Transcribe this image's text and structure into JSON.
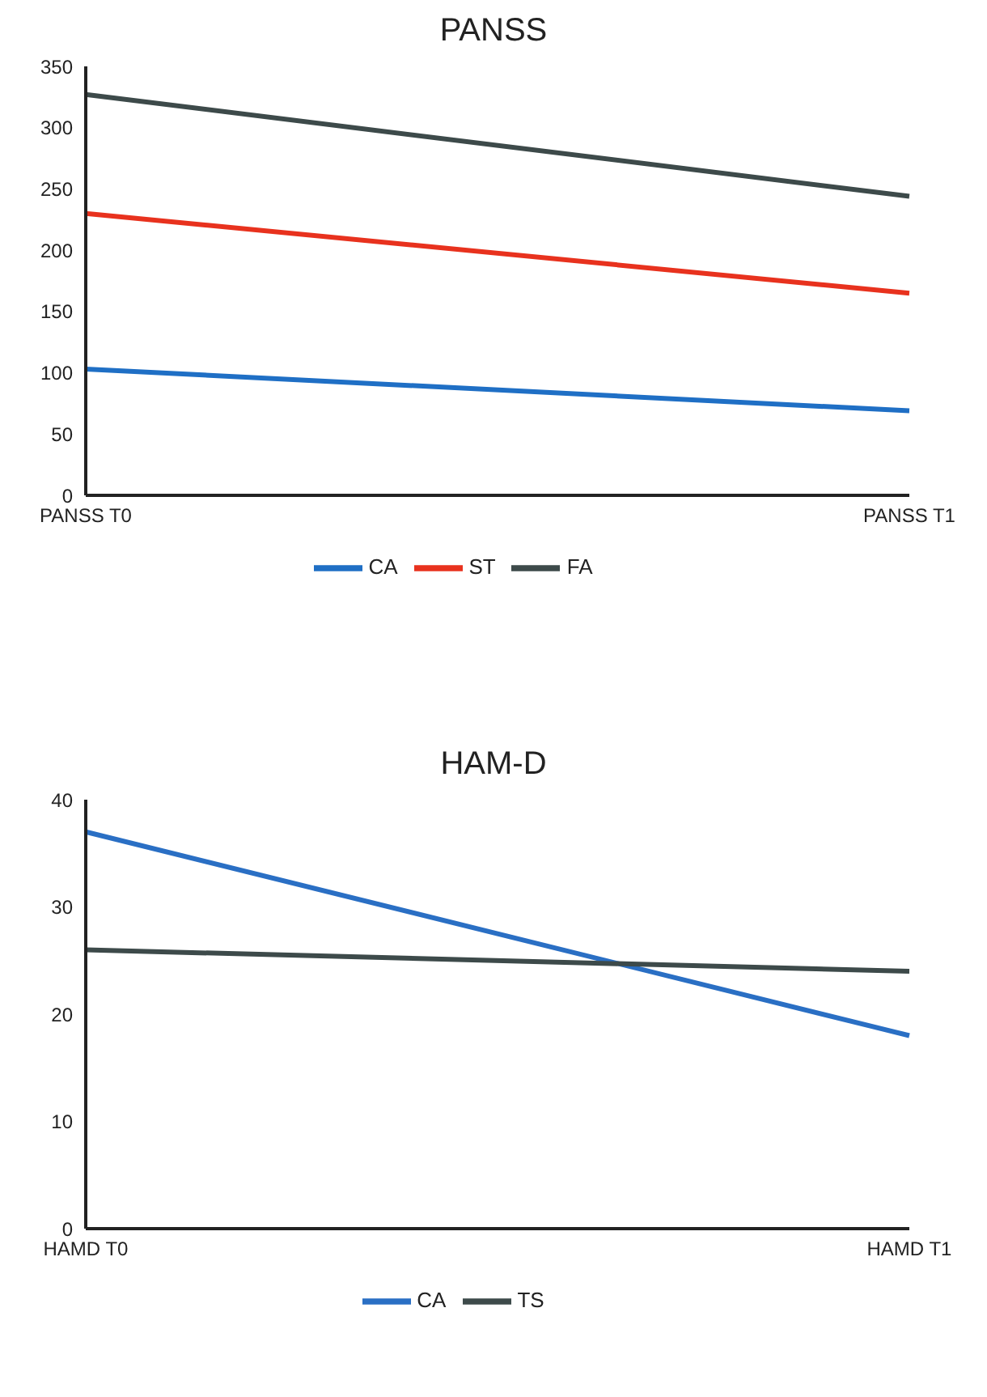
{
  "chart_data": [
    {
      "type": "line",
      "title": "PANSS",
      "categories": [
        "PANSS T0",
        "PANSS T1"
      ],
      "series": [
        {
          "name": "CA",
          "color": "#1f6fc5",
          "values": [
            103,
            69
          ]
        },
        {
          "name": "ST",
          "color": "#e8321e",
          "values": [
            230,
            165
          ]
        },
        {
          "name": "FA",
          "color": "#3d4a4a",
          "values": [
            327,
            244
          ]
        }
      ],
      "ylim": [
        0,
        350
      ],
      "yticks": [
        0,
        50,
        100,
        150,
        200,
        250,
        300,
        350
      ],
      "grid": false,
      "legend": "bottom",
      "marker": "none"
    },
    {
      "type": "line",
      "title": "HAM-D",
      "categories": [
        "HAMD T0",
        "HAMD T1"
      ],
      "series": [
        {
          "name": "CA",
          "color": "#2a6fc4",
          "values": [
            37,
            18
          ]
        },
        {
          "name": "TS",
          "color": "#3d4a4a",
          "values": [
            26,
            24
          ]
        }
      ],
      "ylim": [
        0,
        40
      ],
      "yticks": [
        0,
        10,
        20,
        30,
        40
      ],
      "grid": false,
      "legend": "bottom",
      "marker": "none"
    }
  ]
}
